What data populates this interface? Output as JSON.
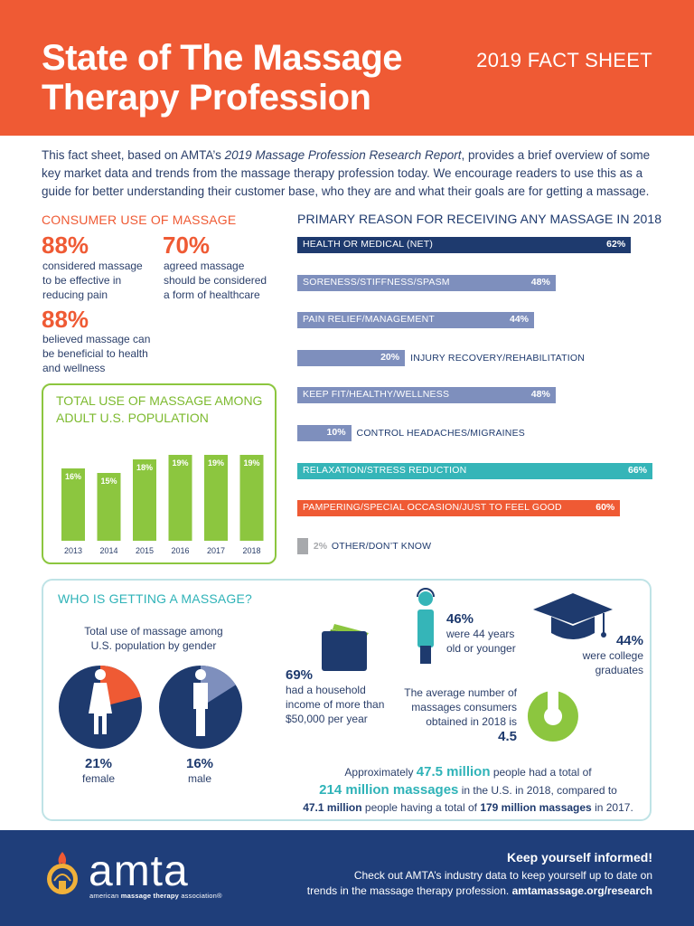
{
  "header": {
    "title_line1": "State of The Massage",
    "title_line2": "Therapy Profession",
    "fact_sheet": "2019 FACT SHEET"
  },
  "intro": {
    "prefix": "This fact sheet, based on AMTA’s ",
    "report": "2019 Massage Profession Research Report",
    "suffix": ", provides a brief overview of some key market data and trends from the massage therapy profession today. We encourage readers to use this as a guide for better understanding their customer base, who they are and what their goals are for getting a massage."
  },
  "consumer": {
    "title": "CONSUMER USE OF MASSAGE",
    "stats": [
      {
        "value": "88%",
        "line1": "considered massage",
        "line2": "to be effective in",
        "line3": "reducing pain"
      },
      {
        "value": "70%",
        "line1": "agreed massage",
        "line2": "should be considered",
        "line3": "a form of healthcare"
      },
      {
        "value": "88%",
        "line1": "believed massage can",
        "line2": "be beneficial to health",
        "line3": "and wellness"
      }
    ]
  },
  "colors": {
    "orange": "#ef5a34",
    "navy": "#1e3a6e",
    "slate": "#7e8fbd",
    "teal": "#35b5b8",
    "green": "#8cc63f",
    "gray": "#a7a9ac"
  },
  "chart_data": [
    {
      "type": "bar",
      "title": "TOTAL USE OF MASSAGE AMONG ADULT U.S. POPULATION",
      "title_line1": "TOTAL USE OF MASSAGE AMONG",
      "title_line2": "ADULT U.S. POPULATION",
      "categories": [
        "2013",
        "2014",
        "2015",
        "2016",
        "2017",
        "2018"
      ],
      "values": [
        16,
        15,
        18,
        19,
        19,
        19
      ],
      "labels": [
        "16%",
        "15%",
        "18%",
        "19%",
        "19%",
        "19%"
      ],
      "ylim": [
        0,
        20
      ],
      "grid": false
    },
    {
      "type": "bar",
      "orientation": "horizontal",
      "title": "PRIMARY REASON FOR RECEIVING ANY MASSAGE IN 2018",
      "categories": [
        "HEALTH OR MEDICAL (NET)",
        "SORENESS/STIFFNESS/SPASM",
        "PAIN RELIEF/MANAGEMENT",
        "INJURY RECOVERY/REHABILITATION",
        "KEEP FIT/HEALTHY/WELLNESS",
        "CONTROL HEADACHES/MIGRAINES",
        "RELAXATION/STRESS REDUCTION",
        "PAMPERING/SPECIAL OCCASION/JUST TO FEEL GOOD",
        "OTHER/DON’T KNOW"
      ],
      "values": [
        62,
        48,
        44,
        20,
        48,
        10,
        66,
        60,
        2
      ],
      "labels": [
        "62%",
        "48%",
        "44%",
        "20%",
        "48%",
        "10%",
        "66%",
        "60%",
        "2%"
      ],
      "bar_colors": [
        "#1e3a6e",
        "#7e8fbd",
        "#7e8fbd",
        "#7e8fbd",
        "#7e8fbd",
        "#7e8fbd",
        "#35b5b8",
        "#ef5a34",
        "#a7a9ac"
      ],
      "xlim": [
        0,
        66
      ]
    },
    {
      "type": "pie",
      "title": "Total use of massage among U.S. population by gender",
      "series": [
        {
          "name": "female",
          "values": [
            21,
            79
          ],
          "label": "21%"
        },
        {
          "name": "male",
          "values": [
            16,
            84
          ],
          "label": "16%"
        }
      ]
    }
  ],
  "who": {
    "title": "WHO IS GETTING A MASSAGE?",
    "gender_title_1": "Total use of massage among",
    "gender_title_2": "U.S. population by gender",
    "female_pct": "21%",
    "female_lbl": "female",
    "male_pct": "16%",
    "male_lbl": "male",
    "income_pct": "69%",
    "income_1": "had a household",
    "income_2": "income of more than",
    "income_3": "$50,000 per year",
    "age_pct": "46%",
    "age_1": "were 44 years",
    "age_2": "old or younger",
    "grad_pct": "44%",
    "grad_1": "were college",
    "grad_2": "graduates",
    "avg_1": "The average number of",
    "avg_2": "massages consumers",
    "avg_3": "obtained in 2018 is",
    "avg_val": "4.5",
    "sum_a": "Approximately ",
    "sum_b": "47.5 million",
    "sum_c": " people had a total of",
    "sum_d": "214 million massages",
    "sum_e": " in the U.S. in 2018, compared to",
    "sum_f": "47.1 million",
    "sum_g": " people having a total of ",
    "sum_h": "179 million massages",
    "sum_i": " in 2017."
  },
  "footer": {
    "heading": "Keep yourself informed!",
    "line1": "Check out AMTA’s industry data to keep yourself up to date on",
    "line2_prefix": "trends in the massage therapy profession. ",
    "link": "amtamassage.org/research",
    "logo_word": "amta",
    "logo_sub_a": "american ",
    "logo_sub_b": "massage therapy",
    "logo_sub_c": " association",
    "logo_reg": "®"
  }
}
